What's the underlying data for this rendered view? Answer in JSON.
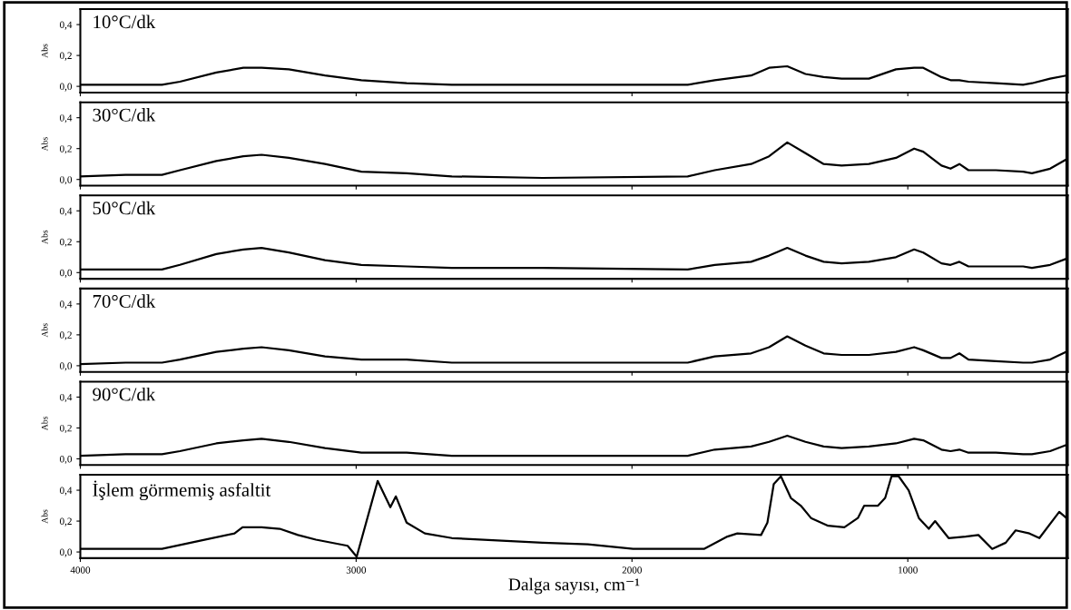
{
  "chart_data": [
    {
      "type": "line",
      "title": "10°C/dk",
      "ylabel": "Abs",
      "tick_labels": "y",
      "color": "#000000",
      "x": [
        4000,
        3836,
        3704,
        3639,
        3507,
        3409,
        3343,
        3244,
        3113,
        2981,
        2817,
        2653,
        2324,
        1798,
        1700,
        1568,
        1503,
        1437,
        1371,
        1305,
        1240,
        1141,
        1043,
        977,
        944,
        878,
        845,
        813,
        780,
        681,
        582,
        550,
        484,
        425
      ],
      "values": [
        0.01,
        0.01,
        0.01,
        0.03,
        0.09,
        0.12,
        0.12,
        0.11,
        0.07,
        0.04,
        0.02,
        0.01,
        0.01,
        0.01,
        0.04,
        0.07,
        0.12,
        0.13,
        0.08,
        0.06,
        0.05,
        0.05,
        0.11,
        0.12,
        0.12,
        0.06,
        0.04,
        0.04,
        0.03,
        0.02,
        0.01,
        0.02,
        0.05,
        0.07
      ],
      "xlim": [
        4000,
        420
      ],
      "xticks": [
        4000,
        3000,
        2000,
        1000
      ],
      "ylim": [
        -0.04,
        0.5
      ],
      "yticks": [
        {
          "value": 0,
          "label": "0,0"
        },
        {
          "value": 0.2,
          "label": "0,2"
        },
        {
          "value": 0.4,
          "label": "0,4"
        }
      ]
    },
    {
      "type": "line",
      "title": "30°C/dk",
      "ylabel": "Abs",
      "tick_labels": "y",
      "color": "#000000",
      "x": [
        4000,
        3836,
        3704,
        3639,
        3507,
        3409,
        3343,
        3244,
        3113,
        2981,
        2817,
        2653,
        2324,
        1798,
        1700,
        1568,
        1503,
        1437,
        1371,
        1305,
        1240,
        1141,
        1043,
        977,
        944,
        878,
        845,
        813,
        780,
        681,
        582,
        550,
        484,
        425
      ],
      "values": [
        0.02,
        0.03,
        0.03,
        0.06,
        0.12,
        0.15,
        0.16,
        0.14,
        0.1,
        0.05,
        0.04,
        0.02,
        0.01,
        0.02,
        0.06,
        0.1,
        0.15,
        0.24,
        0.17,
        0.1,
        0.09,
        0.1,
        0.14,
        0.2,
        0.18,
        0.09,
        0.07,
        0.1,
        0.06,
        0.06,
        0.05,
        0.04,
        0.07,
        0.13
      ],
      "xlim": [
        4000,
        420
      ],
      "xticks": [
        4000,
        3000,
        2000,
        1000
      ],
      "ylim": [
        -0.04,
        0.5
      ],
      "yticks": [
        {
          "value": 0,
          "label": "0,0"
        },
        {
          "value": 0.2,
          "label": "0,2"
        },
        {
          "value": 0.4,
          "label": "0,4"
        }
      ]
    },
    {
      "type": "line",
      "title": "50°C/dk",
      "ylabel": "Abs",
      "tick_labels": "y",
      "color": "#000000",
      "x": [
        4000,
        3836,
        3704,
        3639,
        3507,
        3409,
        3343,
        3244,
        3113,
        2981,
        2817,
        2653,
        2324,
        1798,
        1700,
        1568,
        1503,
        1437,
        1371,
        1305,
        1240,
        1141,
        1043,
        977,
        944,
        878,
        845,
        813,
        780,
        681,
        582,
        550,
        484,
        425
      ],
      "values": [
        0.02,
        0.02,
        0.02,
        0.05,
        0.12,
        0.15,
        0.16,
        0.13,
        0.08,
        0.05,
        0.04,
        0.03,
        0.03,
        0.02,
        0.05,
        0.07,
        0.11,
        0.16,
        0.11,
        0.07,
        0.06,
        0.07,
        0.1,
        0.15,
        0.13,
        0.06,
        0.05,
        0.07,
        0.04,
        0.04,
        0.04,
        0.03,
        0.05,
        0.09
      ],
      "xlim": [
        4000,
        420
      ],
      "xticks": [
        4000,
        3000,
        2000,
        1000
      ],
      "ylim": [
        -0.04,
        0.5
      ],
      "yticks": [
        {
          "value": 0,
          "label": "0,0"
        },
        {
          "value": 0.2,
          "label": "0,2"
        },
        {
          "value": 0.4,
          "label": "0,4"
        }
      ]
    },
    {
      "type": "line",
      "title": "70°C/dk",
      "ylabel": "Abs",
      "tick_labels": "y",
      "color": "#000000",
      "x": [
        4000,
        3836,
        3704,
        3639,
        3507,
        3409,
        3343,
        3244,
        3113,
        2981,
        2817,
        2653,
        2324,
        1798,
        1700,
        1568,
        1503,
        1437,
        1371,
        1305,
        1240,
        1141,
        1043,
        977,
        944,
        878,
        845,
        813,
        780,
        681,
        582,
        550,
        484,
        425
      ],
      "values": [
        0.01,
        0.02,
        0.02,
        0.04,
        0.09,
        0.11,
        0.12,
        0.1,
        0.06,
        0.04,
        0.04,
        0.02,
        0.02,
        0.02,
        0.06,
        0.08,
        0.12,
        0.19,
        0.13,
        0.08,
        0.07,
        0.07,
        0.09,
        0.12,
        0.1,
        0.05,
        0.05,
        0.08,
        0.04,
        0.03,
        0.02,
        0.02,
        0.04,
        0.09
      ],
      "xlim": [
        4000,
        420
      ],
      "xticks": [
        4000,
        3000,
        2000,
        1000
      ],
      "ylim": [
        -0.04,
        0.5
      ],
      "yticks": [
        {
          "value": 0,
          "label": "0,0"
        },
        {
          "value": 0.2,
          "label": "0,2"
        },
        {
          "value": 0.4,
          "label": "0,4"
        }
      ]
    },
    {
      "type": "line",
      "title": "90°C/dk",
      "ylabel": "Abs",
      "tick_labels": "y",
      "color": "#000000",
      "x": [
        4000,
        3836,
        3704,
        3639,
        3507,
        3409,
        3343,
        3244,
        3113,
        2981,
        2817,
        2653,
        2324,
        1798,
        1700,
        1568,
        1503,
        1437,
        1371,
        1305,
        1240,
        1141,
        1043,
        977,
        944,
        878,
        845,
        813,
        780,
        681,
        582,
        550,
        484,
        425
      ],
      "values": [
        0.02,
        0.03,
        0.03,
        0.05,
        0.1,
        0.12,
        0.13,
        0.11,
        0.07,
        0.04,
        0.04,
        0.02,
        0.02,
        0.02,
        0.06,
        0.08,
        0.11,
        0.15,
        0.11,
        0.08,
        0.07,
        0.08,
        0.1,
        0.13,
        0.12,
        0.06,
        0.05,
        0.06,
        0.04,
        0.04,
        0.03,
        0.03,
        0.05,
        0.09
      ],
      "xlim": [
        4000,
        420
      ],
      "xticks": [
        4000,
        3000,
        2000,
        1000
      ],
      "ylim": [
        -0.04,
        0.5
      ],
      "yticks": [
        {
          "value": 0,
          "label": "0,0"
        },
        {
          "value": 0.2,
          "label": "0,2"
        },
        {
          "value": 0.4,
          "label": "0,4"
        }
      ]
    },
    {
      "type": "line",
      "title": "İşlem görmemiş asfaltit",
      "ylabel": "Abs",
      "xlabel": "Dalga sayısı, cm⁻¹",
      "color": "#000000",
      "x": [
        4000,
        3803,
        3704,
        3573,
        3441,
        3412,
        3343,
        3277,
        3211,
        3146,
        3031,
        2998,
        2922,
        2876,
        2856,
        2817,
        2751,
        2653,
        2324,
        2160,
        1996,
        1739,
        1654,
        1618,
        1532,
        1509,
        1486,
        1460,
        1424,
        1388,
        1351,
        1289,
        1230,
        1181,
        1158,
        1108,
        1082,
        1059,
        1033,
        997,
        960,
        924,
        901,
        852,
        790,
        744,
        694,
        645,
        609,
        559,
        523,
        451,
        425
      ],
      "values": [
        0.02,
        0.02,
        0.02,
        0.07,
        0.12,
        0.16,
        0.16,
        0.15,
        0.11,
        0.08,
        0.04,
        -0.03,
        0.46,
        0.29,
        0.36,
        0.19,
        0.12,
        0.09,
        0.06,
        0.05,
        0.02,
        0.02,
        0.1,
        0.12,
        0.11,
        0.19,
        0.44,
        0.49,
        0.35,
        0.3,
        0.22,
        0.17,
        0.16,
        0.22,
        0.3,
        0.3,
        0.35,
        0.49,
        0.49,
        0.4,
        0.22,
        0.15,
        0.2,
        0.09,
        0.1,
        0.11,
        0.02,
        0.06,
        0.14,
        0.12,
        0.09,
        0.26,
        0.22
      ],
      "xlim": [
        4000,
        420
      ],
      "xticks": [
        4000,
        3000,
        2000,
        1000
      ],
      "ylim": [
        -0.04,
        0.5
      ],
      "yticks": [
        {
          "value": 0,
          "label": "0,0"
        },
        {
          "value": 0.2,
          "label": "0,2"
        },
        {
          "value": 0.4,
          "label": "0,4"
        }
      ]
    }
  ]
}
